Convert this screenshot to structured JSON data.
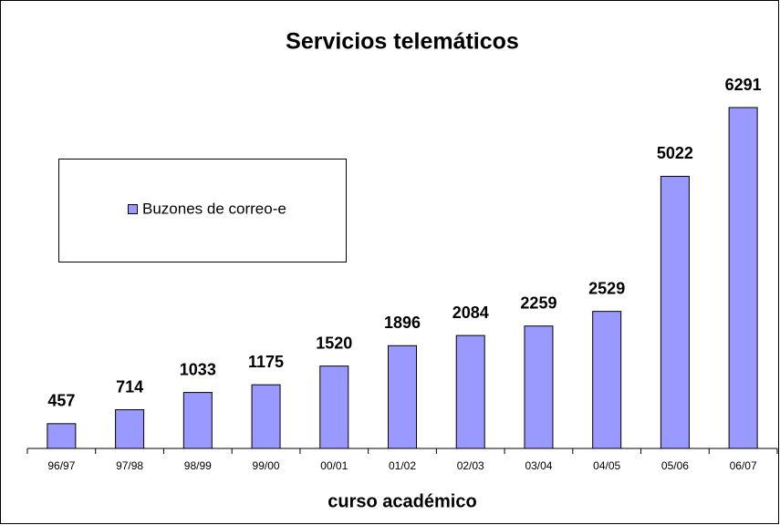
{
  "chart_data": {
    "type": "bar",
    "title": "Servicios telemáticos",
    "x_label": "curso académico",
    "categories": [
      "96/97",
      "97/98",
      "98/99",
      "99/00",
      "00/01",
      "01/02",
      "02/03",
      "03/04",
      "04/05",
      "05/06",
      "06/07"
    ],
    "series": [
      {
        "name": "Buzones de correo-e",
        "color": "#9999ff",
        "values": [
          457,
          714,
          1033,
          1175,
          1520,
          1896,
          2084,
          2259,
          2529,
          5022,
          6291
        ]
      }
    ],
    "legend": "left"
  }
}
